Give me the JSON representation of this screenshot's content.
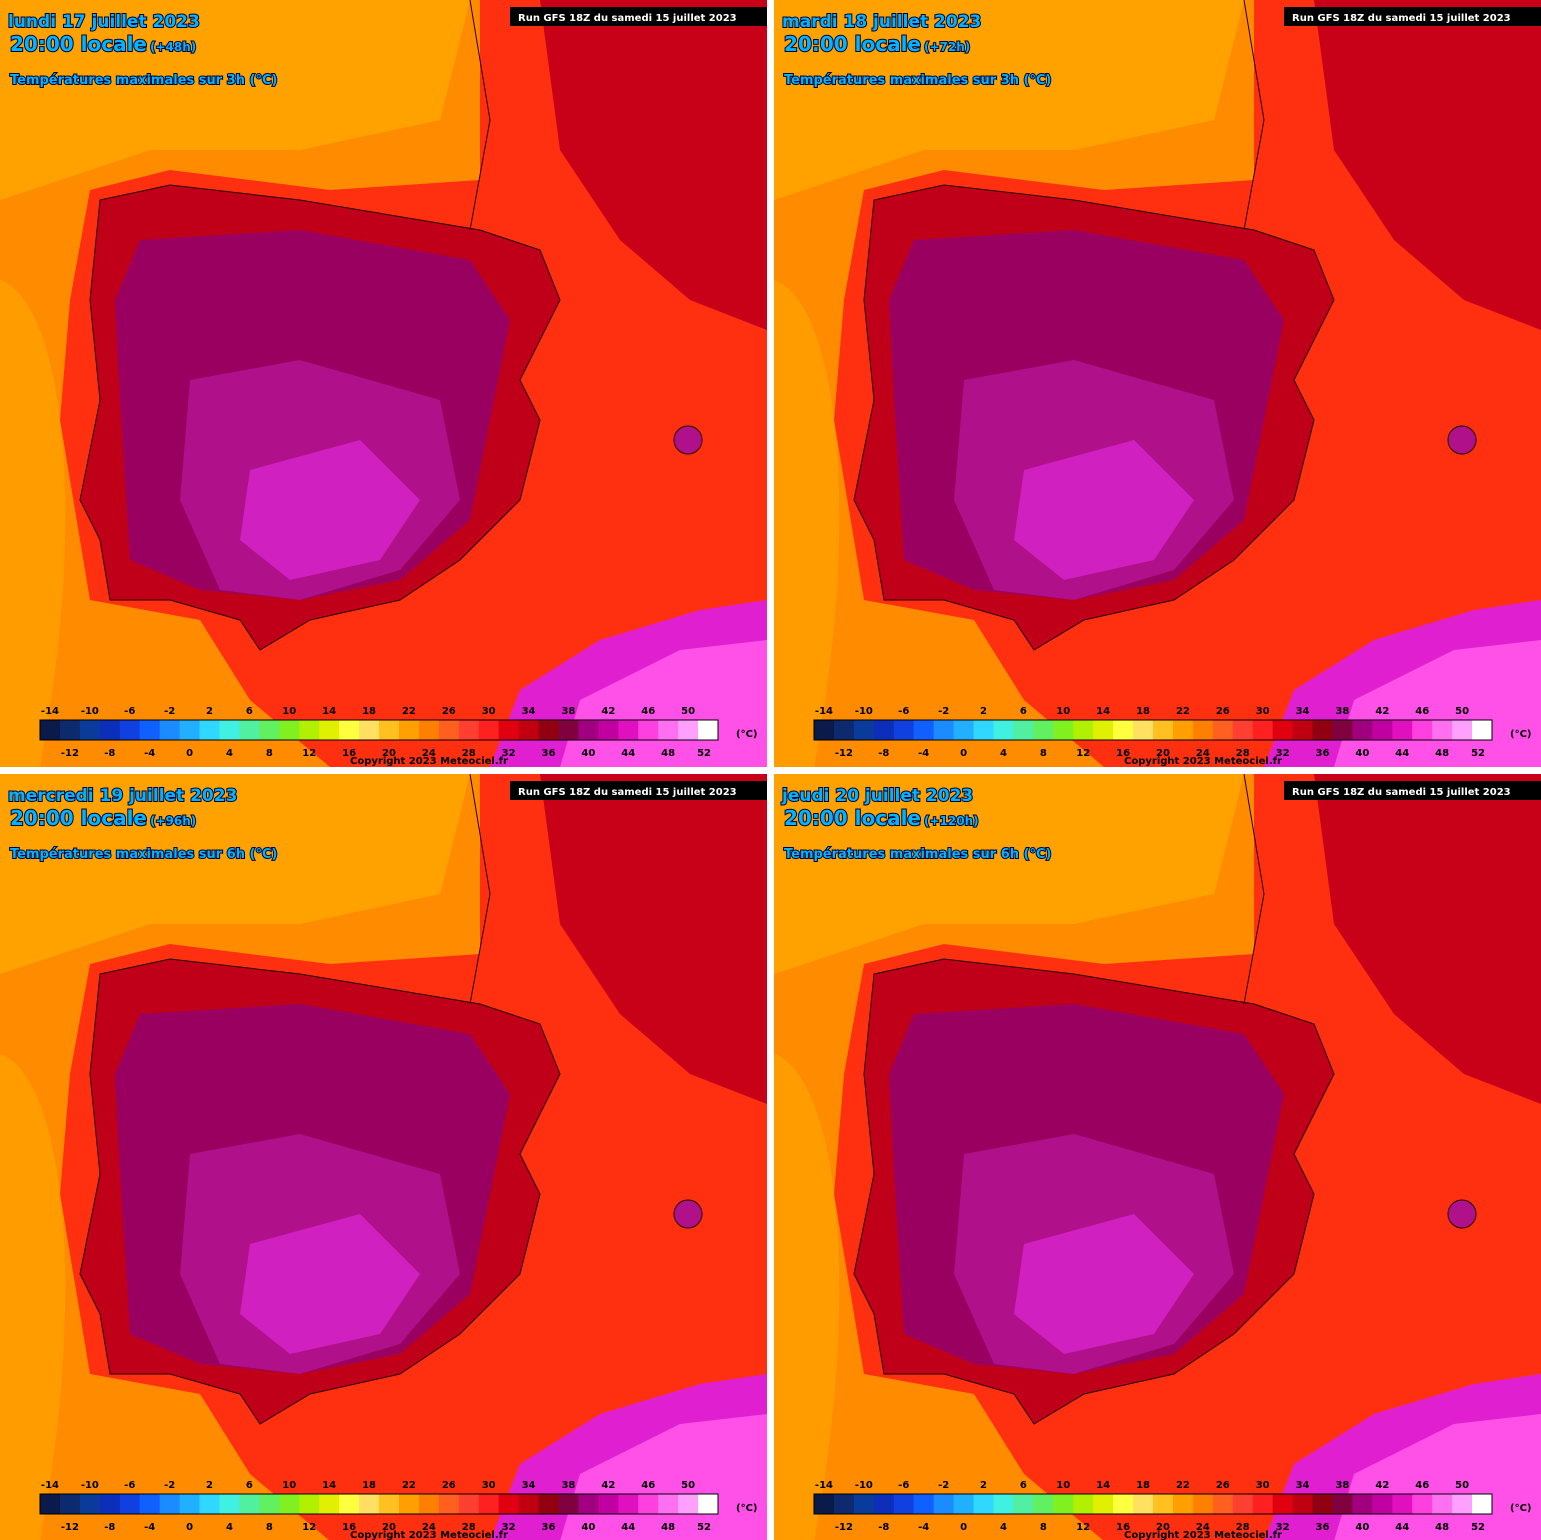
{
  "panels": [
    {
      "date": "lundi 17 juillet 2023",
      "time": "20:00 locale",
      "lead": "(+48h)",
      "subtitle": "Températures maximales sur 3h (°C)",
      "run": "Run GFS 18Z du samedi 15 juillet 2023",
      "copyright": "Copyright 2023 Meteociel.fr"
    },
    {
      "date": "mardi 18 juillet 2023",
      "time": "20:00 locale",
      "lead": "(+72h)",
      "subtitle": "Températures maximales sur 3h (°C)",
      "run": "Run GFS 18Z du samedi 15 juillet 2023",
      "copyright": "Copyright 2023 Meteociel.fr"
    },
    {
      "date": "mercredi 19 juillet 2023",
      "time": "20:00 locale",
      "lead": "(+96h)",
      "subtitle": "Températures maximales sur 6h (°C)",
      "run": "Run GFS 18Z du samedi 15 juillet 2023",
      "copyright": "Copyright 2023 Meteociel.fr"
    },
    {
      "date": "jeudi 20 juillet 2023",
      "time": "20:00 locale",
      "lead": "(+120h)",
      "subtitle": "Températures maximales sur 6h (°C)",
      "run": "Run GFS 18Z du samedi 15 juillet 2023",
      "copyright": "Copyright 2023 Meteociel.fr"
    }
  ],
  "colorbar": {
    "ticks": [
      -14,
      -12,
      -10,
      -8,
      -6,
      -4,
      -2,
      0,
      2,
      4,
      6,
      8,
      10,
      12,
      14,
      16,
      18,
      20,
      22,
      24,
      26,
      28,
      30,
      32,
      34,
      36,
      38,
      40,
      42,
      44,
      46,
      48,
      50,
      52
    ],
    "unit": "(°C)",
    "colors": [
      "#0a1a4a",
      "#0d2a6e",
      "#0a3a9a",
      "#0b2fb8",
      "#1040e0",
      "#1060ff",
      "#1a8cff",
      "#20b0ff",
      "#30d8ff",
      "#40f0e0",
      "#50f0a0",
      "#60f060",
      "#80f020",
      "#b0f000",
      "#e0f000",
      "#ffff40",
      "#ffe060",
      "#ffc020",
      "#ffa000",
      "#ff8000",
      "#ff6020",
      "#ff4030",
      "#ff2020",
      "#e00010",
      "#c00010",
      "#900010",
      "#800040",
      "#a00080",
      "#c000a0",
      "#e010c0",
      "#ff40e0",
      "#ff70f0",
      "#ffa0ff",
      "#ffffff"
    ]
  }
}
